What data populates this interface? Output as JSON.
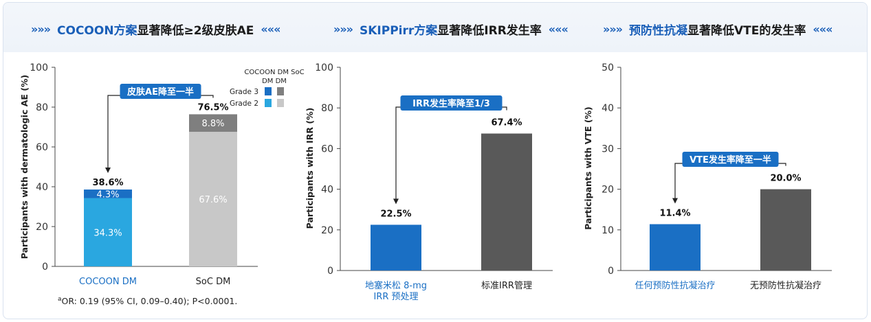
{
  "panels": [
    {
      "header": {
        "arrows_left": "»»»",
        "highlight": "COCOON方案",
        "rest": "显著降低≥2级皮肤AE",
        "arrows_right": "«««"
      },
      "chart_data": {
        "type": "bar",
        "stacked": true,
        "ylabel": "Participants with dermatologic AE (%)",
        "ylim": [
          0,
          100
        ],
        "yticks": [
          0,
          20,
          40,
          60,
          80,
          100
        ],
        "categories": [
          "COCOON DM",
          "SoC DM"
        ],
        "series": [
          {
            "name": "Grade 2",
            "values": [
              34.3,
              67.6
            ],
            "colors": [
              "#2aa7e0",
              "#c8c8c8"
            ],
            "labels": [
              "34.3%",
              "67.6%"
            ]
          },
          {
            "name": "Grade 3",
            "values": [
              4.3,
              8.8
            ],
            "colors": [
              "#1a6fc4",
              "#7f7f7f"
            ],
            "labels": [
              "4.3%",
              "8.8%"
            ]
          }
        ],
        "totals": [
          "38.6%",
          "76.5%"
        ],
        "callout": "皮肤AE降至一半",
        "legend": {
          "col_headers": [
            "COCOON DM",
            "SoC DM"
          ],
          "rows": [
            {
              "label": "Grade 3",
              "colors": [
                "#1a6fc4",
                "#7f7f7f"
              ]
            },
            {
              "label": "Grade 2",
              "colors": [
                "#2aa7e0",
                "#c8c8c8"
              ]
            }
          ]
        },
        "footnote_sup": "a",
        "footnote": "OR: 0.19 (95% CI, 0.09–0.40); P<0.0001."
      }
    },
    {
      "header": {
        "arrows_left": "»»»",
        "highlight": "SKIPPirr方案",
        "rest": "显著降低IRR发生率",
        "arrows_right": "«««"
      },
      "chart_data": {
        "type": "bar",
        "ylabel": "Participants with IRR (%)",
        "ylim": [
          0,
          100
        ],
        "yticks": [
          0,
          20,
          40,
          60,
          80,
          100
        ],
        "categories": [
          "地塞米松 8-mg\nIRR 预处理",
          "标准IRR管理"
        ],
        "values": [
          22.5,
          67.4
        ],
        "value_labels": [
          "22.5%",
          "67.4%"
        ],
        "colors": [
          "#1a6fc4",
          "#595959"
        ],
        "callout": "IRR发生率降至1/3"
      }
    },
    {
      "header": {
        "arrows_left": "»»»",
        "highlight": "预防性抗凝",
        "rest": "显著降低VTE的发生率",
        "arrows_right": "«««"
      },
      "chart_data": {
        "type": "bar",
        "ylabel": "Participants with VTE (%)",
        "ylim": [
          0,
          50
        ],
        "yticks": [
          0,
          10,
          20,
          30,
          40,
          50
        ],
        "categories": [
          "任何预防性抗凝治疗",
          "无预防性抗凝治疗"
        ],
        "values": [
          11.4,
          20.0
        ],
        "value_labels": [
          "11.4%",
          "20.0%"
        ],
        "colors": [
          "#1a6fc4",
          "#595959"
        ],
        "callout": "VTE发生率降至一半"
      }
    }
  ],
  "colors": {
    "blue": "#1a6fc4",
    "header_blue": "#1a5fb8",
    "light_blue_label": "#1a6fc4",
    "axis": "#444444"
  }
}
